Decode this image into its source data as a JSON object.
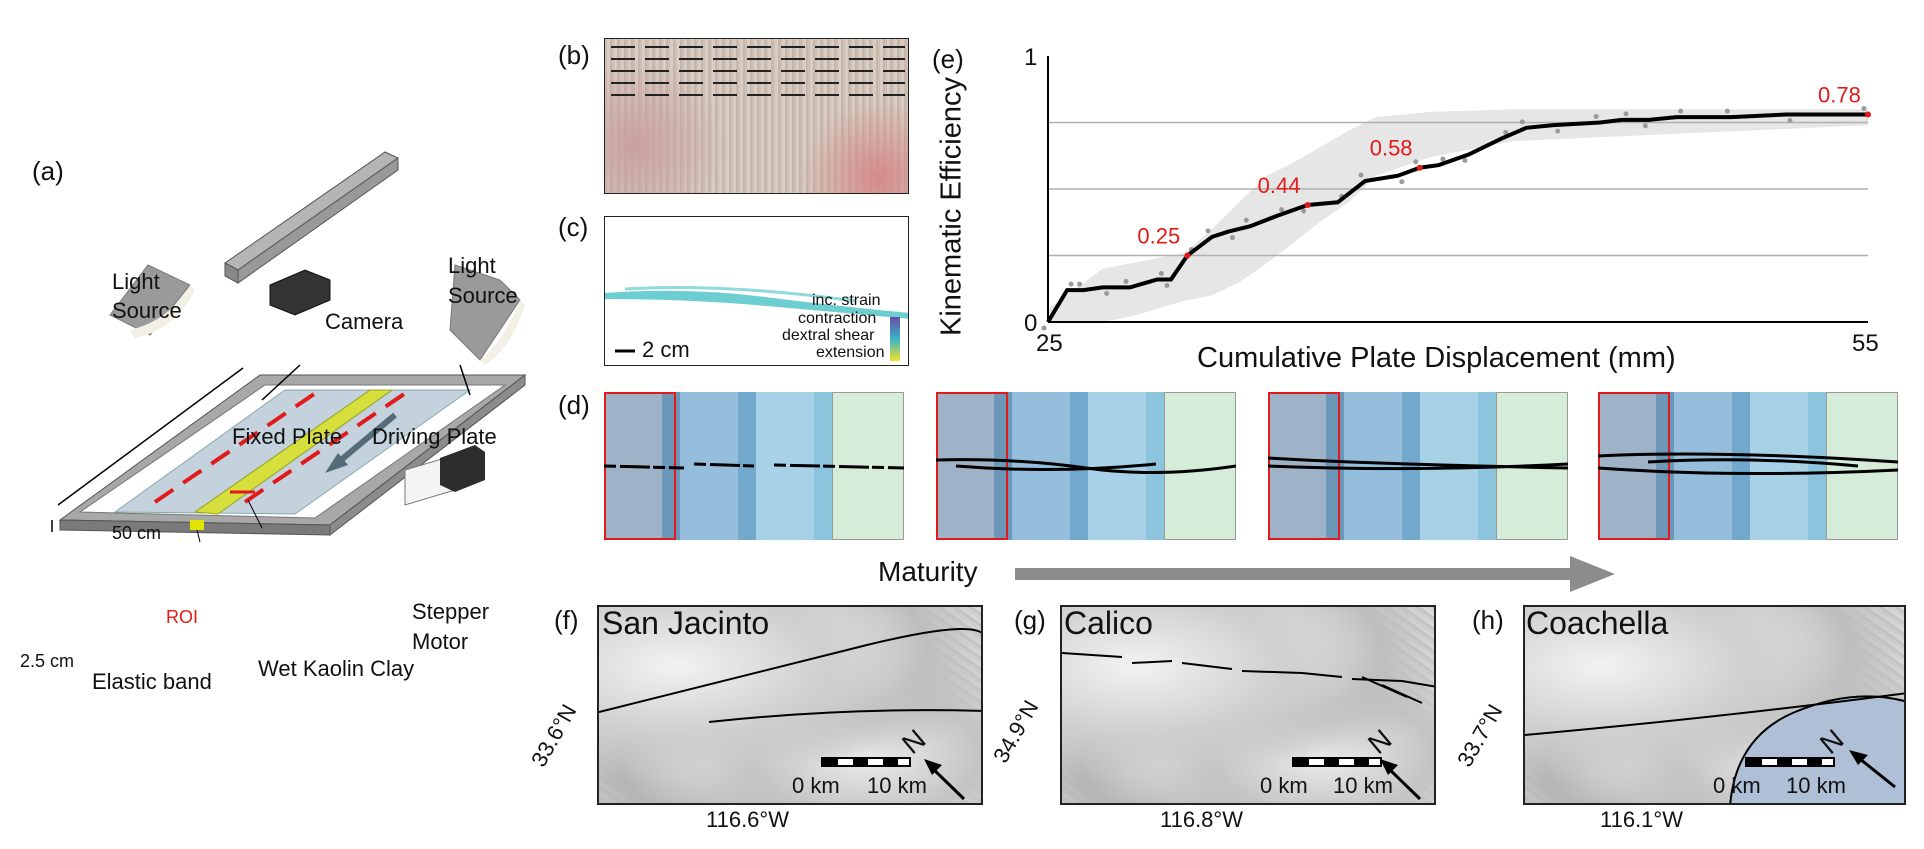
{
  "panels": {
    "a": {
      "letter": "(a)",
      "light_left": [
        "Light",
        "Source"
      ],
      "light_right": [
        "Light",
        "Source"
      ],
      "camera": "Camera",
      "fixed_plate": "Fixed Plate",
      "driving_plate": "Driving Plate",
      "length": "50 cm",
      "height": "2.5 cm",
      "roi": "ROI",
      "stepper": [
        "Stepper",
        "Motor"
      ],
      "elastic_band": "Elastic band",
      "clay": "Wet Kaolin Clay"
    },
    "b": {
      "letter": "(b)"
    },
    "c": {
      "letter": "(c)",
      "scale": "2 cm",
      "legend": [
        "inc. strain",
        "contraction",
        "dextral shear",
        "extension"
      ]
    },
    "d": {
      "letter": "(d)",
      "maturity": "Maturity"
    },
    "e": {
      "letter": "(e)"
    },
    "f": {
      "letter": "(f)",
      "name": "San Jacinto",
      "lat": "33.6°N",
      "lon": "116.6°W",
      "scale0": "0 km",
      "scale10": "10 km",
      "north": "N"
    },
    "g": {
      "letter": "(g)",
      "name": "Calico",
      "lat": "34.9°N",
      "lon": "116.8°W",
      "scale0": "0 km",
      "scale10": "10 km",
      "north": "N"
    },
    "h": {
      "letter": "(h)",
      "name": "Coachella",
      "lat": "33.7°N",
      "lon": "116.1°W",
      "scale0": "0 km",
      "scale10": "10 km",
      "north": "N"
    }
  },
  "chart_data": {
    "type": "line",
    "title": "",
    "xlabel": "Cumulative Plate Displacement (mm)",
    "ylabel": "Kinematic Efficiency",
    "xlim": [
      25,
      55
    ],
    "ylim": [
      0,
      1
    ],
    "x_tick_labels": [
      "25",
      "55"
    ],
    "y_tick_labels": [
      "0",
      "1"
    ],
    "grid_y": [
      0.25,
      0.5,
      0.75
    ],
    "series": [
      {
        "x": [
          25,
          25.7,
          26.3,
          27,
          28,
          29,
          29.5,
          30.1,
          31,
          31.6,
          32.4,
          33.4,
          34.5,
          35.6,
          36.6,
          37.8,
          38.6,
          39.3,
          40.4,
          41.6,
          42.5,
          43.5,
          45.2,
          46,
          47,
          48,
          50,
          52,
          55
        ],
        "y": [
          0,
          0.12,
          0.12,
          0.13,
          0.13,
          0.16,
          0.16,
          0.25,
          0.32,
          0.34,
          0.36,
          0.4,
          0.44,
          0.45,
          0.53,
          0.55,
          0.58,
          0.59,
          0.63,
          0.69,
          0.73,
          0.74,
          0.75,
          0.76,
          0.76,
          0.77,
          0.77,
          0.78,
          0.78
        ]
      }
    ],
    "band_upper": [
      0.05,
      0.2,
      0.22,
      0.24,
      0.26,
      0.35,
      0.45,
      0.55,
      0.6,
      0.66,
      0.72,
      0.77,
      0.79,
      0.8,
      0.8
    ],
    "band_lower": [
      0,
      0,
      0.02,
      0.05,
      0.08,
      0.1,
      0.15,
      0.22,
      0.3,
      0.38,
      0.45,
      0.55,
      0.62,
      0.68,
      0.74
    ],
    "band_x": [
      25,
      27,
      28,
      29,
      30,
      31,
      32,
      33,
      34,
      35,
      36,
      37,
      39,
      42,
      55
    ],
    "annotations": [
      {
        "x": 30.1,
        "y": 0.25,
        "label": "0.25"
      },
      {
        "x": 34.5,
        "y": 0.44,
        "label": "0.44"
      },
      {
        "x": 38.6,
        "y": 0.58,
        "label": "0.58"
      },
      {
        "x": 55,
        "y": 0.78,
        "label": "0.78"
      }
    ],
    "colors": {
      "line": "#000000",
      "band": "#e6e6e6",
      "annotation": "#e21a1a"
    }
  }
}
